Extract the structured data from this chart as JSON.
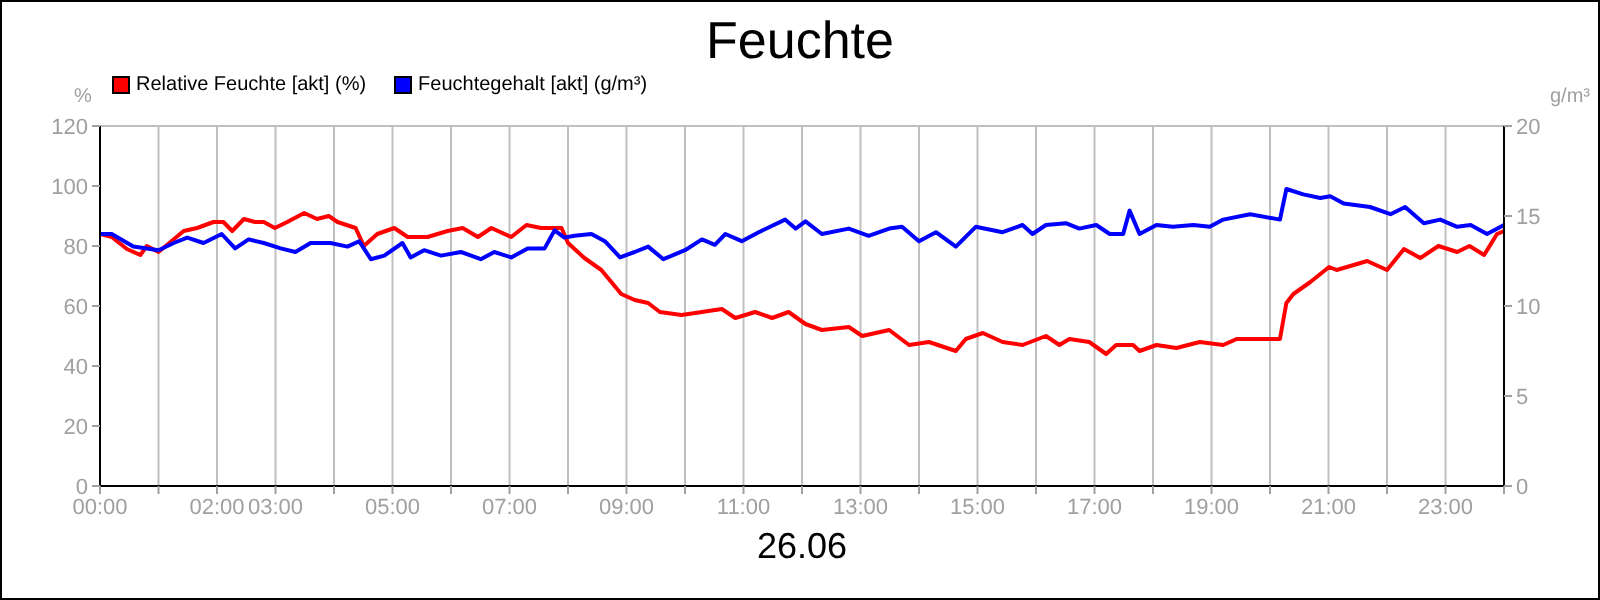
{
  "chart_data": {
    "type": "line",
    "title": "Feuchte",
    "xlabel": "26.06",
    "ylabel": "%",
    "y2label": "g/m³",
    "legend": "top left",
    "grid": true,
    "marker": "none",
    "line_style": "solid",
    "xlim": [
      0,
      24
    ],
    "xticks": [
      {
        "value": 0,
        "label": "00:00"
      },
      {
        "value": 1,
        "label": null
      },
      {
        "value": 2,
        "label": "02:00"
      },
      {
        "value": 3,
        "label": "03:00"
      },
      {
        "value": 4,
        "label": null
      },
      {
        "value": 5,
        "label": "05:00"
      },
      {
        "value": 6,
        "label": null
      },
      {
        "value": 7,
        "label": "07:00"
      },
      {
        "value": 8,
        "label": null
      },
      {
        "value": 9,
        "label": "09:00"
      },
      {
        "value": 10,
        "label": null
      },
      {
        "value": 11,
        "label": "11:00"
      },
      {
        "value": 12,
        "label": null
      },
      {
        "value": 13,
        "label": "13:00"
      },
      {
        "value": 14,
        "label": null
      },
      {
        "value": 15,
        "label": "15:00"
      },
      {
        "value": 16,
        "label": null
      },
      {
        "value": 17,
        "label": "17:00"
      },
      {
        "value": 18,
        "label": null
      },
      {
        "value": 19,
        "label": "19:00"
      },
      {
        "value": 20,
        "label": null
      },
      {
        "value": 21,
        "label": "21:00"
      },
      {
        "value": 22,
        "label": null
      },
      {
        "value": 23,
        "label": "23:00"
      },
      {
        "value": 24,
        "label": null
      }
    ],
    "ylim": [
      0,
      120
    ],
    "yticks": [
      0,
      20,
      40,
      60,
      80,
      100,
      120
    ],
    "y2lim": [
      0,
      20
    ],
    "y2ticks": [
      0,
      5,
      10,
      15,
      20
    ],
    "series": [
      {
        "name": "Relative Feuchte [akt] (%)",
        "color": "#ff0000",
        "x": [
          0,
          0.2,
          0.46,
          0.69,
          0.8,
          1.0,
          1.43,
          1.66,
          1.94,
          2.11,
          2.26,
          2.46,
          2.65,
          2.8,
          2.99,
          3.2,
          3.49,
          3.71,
          3.91,
          4.06,
          4.37,
          4.51,
          4.74,
          5.03,
          5.26,
          5.6,
          5.94,
          6.2,
          6.46,
          6.69,
          7.03,
          7.29,
          7.54,
          7.89,
          8.0,
          8.28,
          8.57,
          8.91,
          9.14,
          9.37,
          9.57,
          9.94,
          10.29,
          10.63,
          10.86,
          11.2,
          11.49,
          11.77,
          12.06,
          12.34,
          12.8,
          13.03,
          13.49,
          13.83,
          14.17,
          14.63,
          14.8,
          15.09,
          15.43,
          15.77,
          16.17,
          16.4,
          16.57,
          16.91,
          17.2,
          17.37,
          17.66,
          17.77,
          18.06,
          18.4,
          18.8,
          19.2,
          19.43,
          19.77,
          20.17,
          20.28,
          20.4,
          20.69,
          21.01,
          21.14,
          21.49,
          21.66,
          22.0,
          22.29,
          22.57,
          22.88,
          23.2,
          23.41,
          23.66,
          23.88,
          24.0
        ],
        "values": [
          84,
          83,
          79,
          77,
          80,
          78,
          85,
          86,
          88,
          88,
          85,
          89,
          88,
          88,
          86,
          88,
          91,
          89,
          90,
          88,
          86,
          80,
          84,
          86,
          83,
          83,
          85,
          86,
          83,
          86,
          83,
          87,
          86,
          86,
          81,
          76,
          72,
          64,
          62,
          61,
          58,
          57,
          58,
          59,
          56,
          58,
          56,
          58,
          54,
          52,
          53,
          50,
          52,
          47,
          48,
          45,
          49,
          51,
          48,
          47,
          50,
          47,
          49,
          48,
          44,
          47,
          47,
          45,
          47,
          46,
          48,
          47,
          49,
          49,
          49,
          61,
          64,
          68,
          73,
          72,
          74,
          75,
          72,
          79,
          76,
          80,
          78,
          80,
          77,
          84,
          85
        ]
      },
      {
        "name": "Feuchtegehalt [akt] (g/m³)",
        "color": "#0000ff",
        "axis": "y2",
        "x": [
          0,
          0.2,
          0.57,
          0.8,
          1.0,
          1.26,
          1.49,
          1.77,
          2.08,
          2.31,
          2.54,
          2.8,
          3.09,
          3.34,
          3.6,
          3.94,
          4.23,
          4.43,
          4.63,
          4.86,
          5.17,
          5.31,
          5.54,
          5.83,
          6.17,
          6.51,
          6.74,
          7.03,
          7.31,
          7.6,
          7.77,
          7.94,
          8.11,
          8.4,
          8.63,
          8.89,
          9.14,
          9.37,
          9.63,
          10.0,
          10.29,
          10.51,
          10.69,
          10.97,
          11.26,
          11.71,
          11.89,
          12.06,
          12.34,
          12.8,
          13.14,
          13.49,
          13.71,
          14.0,
          14.29,
          14.63,
          14.97,
          15.43,
          15.77,
          15.94,
          16.17,
          16.51,
          16.74,
          17.03,
          17.26,
          17.49,
          17.6,
          17.77,
          18.06,
          18.34,
          18.69,
          18.97,
          19.2,
          19.66,
          20.17,
          20.28,
          20.57,
          20.86,
          21.03,
          21.26,
          21.71,
          22.06,
          22.31,
          22.63,
          22.91,
          23.2,
          23.43,
          23.71,
          24.0
        ],
        "values": [
          14,
          14,
          13.3,
          13.2,
          13.1,
          13.5,
          13.8,
          13.5,
          14,
          13.2,
          13.7,
          13.5,
          13.2,
          13,
          13.5,
          13.5,
          13.3,
          13.6,
          12.6,
          12.8,
          13.5,
          12.7,
          13.1,
          12.8,
          13,
          12.6,
          13,
          12.7,
          13.2,
          13.2,
          14.2,
          13.8,
          13.9,
          14,
          13.6,
          12.7,
          13,
          13.3,
          12.6,
          13.1,
          13.7,
          13.4,
          14,
          13.6,
          14.1,
          14.8,
          14.3,
          14.7,
          14,
          14.3,
          13.9,
          14.3,
          14.4,
          13.6,
          14.1,
          13.3,
          14.4,
          14.1,
          14.5,
          14,
          14.5,
          14.6,
          14.3,
          14.5,
          14,
          14,
          15.3,
          14,
          14.5,
          14.4,
          14.5,
          14.4,
          14.8,
          15.1,
          14.8,
          16.5,
          16.2,
          16,
          16.1,
          15.7,
          15.5,
          15.1,
          15.5,
          14.6,
          14.8,
          14.4,
          14.5,
          14,
          14.5
        ]
      }
    ]
  }
}
